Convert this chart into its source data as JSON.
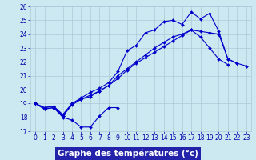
{
  "title": "Graphe des températures (°c)",
  "x_hours": [
    0,
    1,
    2,
    3,
    4,
    5,
    6,
    7,
    8,
    9,
    10,
    11,
    12,
    13,
    14,
    15,
    16,
    17,
    18,
    19,
    20,
    21,
    22,
    23
  ],
  "series": [
    [
      19.0,
      18.6,
      18.7,
      18.0,
      17.8,
      17.3,
      17.3,
      18.1,
      18.7,
      18.7,
      null,
      null,
      null,
      null,
      null,
      null,
      null,
      null,
      null,
      null,
      null,
      null,
      null,
      null
    ],
    [
      19.0,
      18.7,
      18.8,
      18.1,
      18.9,
      19.3,
      19.5,
      19.9,
      20.3,
      21.0,
      21.5,
      22.0,
      22.5,
      23.0,
      23.4,
      23.8,
      24.0,
      24.3,
      23.8,
      23.0,
      22.2,
      21.8,
      null,
      null
    ],
    [
      19.0,
      18.7,
      18.8,
      18.2,
      19.0,
      19.4,
      19.8,
      20.1,
      20.5,
      21.3,
      22.8,
      23.2,
      24.1,
      24.3,
      24.9,
      25.0,
      24.7,
      25.6,
      25.1,
      25.5,
      24.2,
      22.2,
      21.9,
      null
    ],
    [
      19.0,
      18.6,
      18.7,
      18.1,
      19.0,
      19.3,
      19.6,
      19.9,
      20.3,
      20.8,
      21.4,
      21.9,
      22.3,
      22.7,
      23.1,
      23.5,
      23.9,
      24.3,
      24.2,
      24.1,
      24.0,
      22.2,
      21.9,
      21.7
    ]
  ],
  "line_color": "#0000cc",
  "marker": "D",
  "markersize": 2.0,
  "linewidth": 0.8,
  "ylim": [
    17,
    26
  ],
  "yticks": [
    17,
    18,
    19,
    20,
    21,
    22,
    23,
    24,
    25,
    26
  ],
  "xlim": [
    -0.5,
    23.5
  ],
  "xticks": [
    0,
    1,
    2,
    3,
    4,
    5,
    6,
    7,
    8,
    9,
    10,
    11,
    12,
    13,
    14,
    15,
    16,
    17,
    18,
    19,
    20,
    21,
    22,
    23
  ],
  "bg_color": "#cce8f0",
  "grid_color": "#b0c8d8",
  "xlabel_bg": "#2222aa",
  "xlabel_text_color": "#ffffff",
  "tick_color": "#0000aa",
  "tick_fontsize": 5.5,
  "xlabel_fontsize": 7.5
}
